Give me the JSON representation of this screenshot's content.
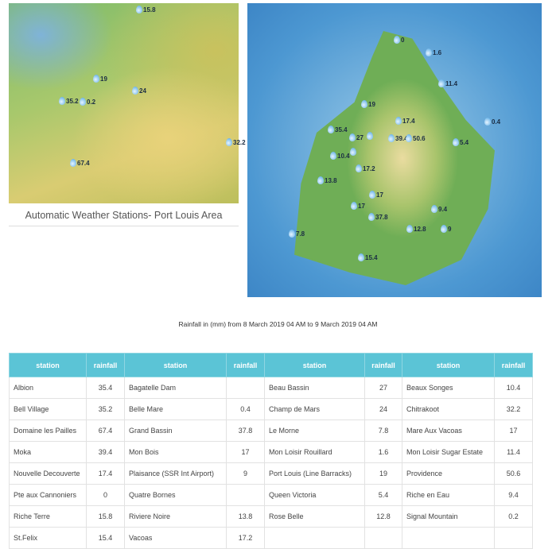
{
  "port_louis_map": {
    "caption": "Automatic Weather Stations- Port Louis Area",
    "markers": [
      "15.8",
      "19",
      "24",
      "35.2",
      "0.2",
      "32.2",
      "67.4"
    ]
  },
  "island_map": {
    "markers": [
      "0",
      "1.6",
      "11.4",
      "19",
      "17.4",
      "0.4",
      "35.4",
      "27",
      "",
      "39.4",
      "50.6",
      "5.4",
      "10.4",
      "",
      "17.2",
      "13.8",
      "17",
      "17",
      "37.8",
      "12.8",
      "9.4",
      "9",
      "7.8",
      "15.4"
    ]
  },
  "table": {
    "title": "Rainfall in (mm) from 8 March 2019 04 AM to 9 March 2019 04 AM",
    "headers": [
      "station",
      "rainfall",
      "station",
      "rainfall",
      "station",
      "rainfall",
      "station",
      "rainfall"
    ],
    "rows": [
      [
        "Albion",
        "35.4",
        "Bagatelle Dam",
        "",
        "Beau Bassin",
        "27",
        "Beaux Songes",
        "10.4"
      ],
      [
        "Bell Village",
        "35.2",
        "Belle Mare",
        "0.4",
        "Champ de Mars",
        "24",
        "Chitrakoot",
        "32.2"
      ],
      [
        "Domaine les Pailles",
        "67.4",
        "Grand Bassin",
        "37.8",
        "Le Morne",
        "7.8",
        "Mare Aux Vacoas",
        "17"
      ],
      [
        "Moka",
        "39.4",
        "Mon Bois",
        "17",
        "Mon Loisir Rouillard",
        "1.6",
        "Mon Loisir Sugar Estate",
        "11.4"
      ],
      [
        "Nouvelle Decouverte",
        "17.4",
        "Plaisance (SSR Int Airport)",
        "9",
        "Port Louis (Line Barracks)",
        "19",
        "Providence",
        "50.6"
      ],
      [
        "Pte aux Cannoniers",
        "0",
        "Quatre Bornes",
        "",
        "Queen Victoria",
        "5.4",
        "Riche en Eau",
        "9.4"
      ],
      [
        "Riche Terre",
        "15.8",
        "Riviere Noire",
        "13.8",
        "Rose Belle",
        "12.8",
        "Signal Mountain",
        "0.2"
      ],
      [
        "St.Felix",
        "15.4",
        "Vacoas",
        "17.2",
        "",
        "",
        "",
        ""
      ]
    ]
  }
}
